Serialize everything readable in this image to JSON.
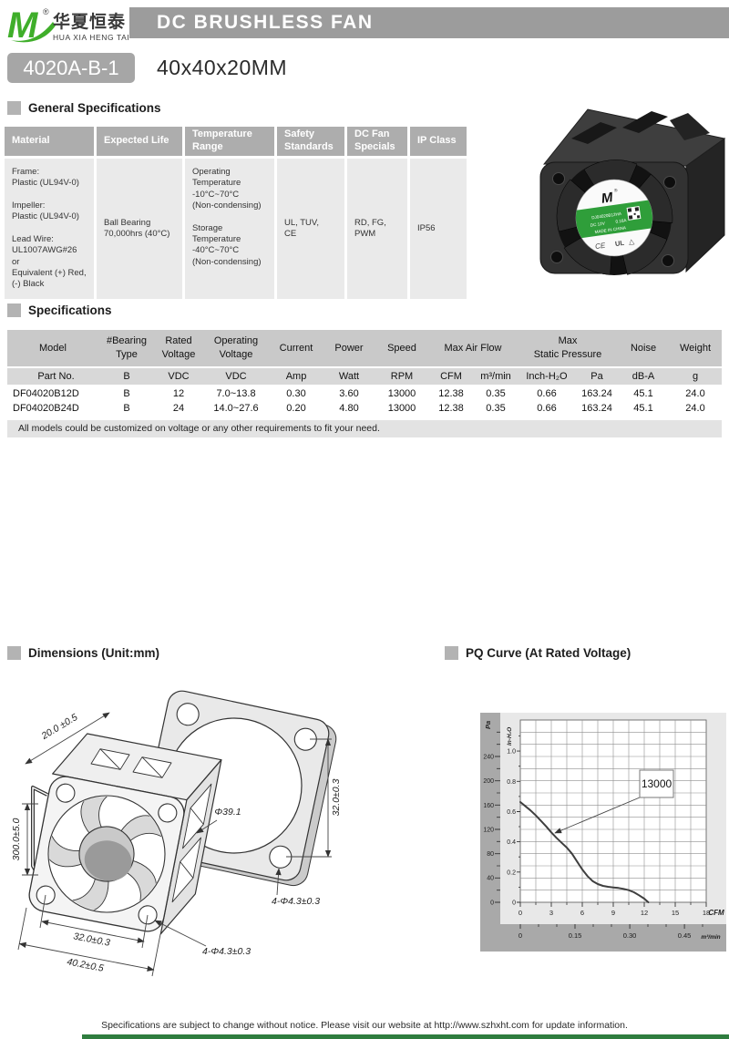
{
  "page": {
    "banner_title": "DC BRUSHLESS FAN",
    "model_badge": "4020A-B-1",
    "size_label": "40x40x20MM",
    "footer_note": "Specifications are subject to change without notice. Please visit our website at http://www.szhxht.com for update information."
  },
  "logo": {
    "mark": "M",
    "registered": "®",
    "brand_cn": "华夏恒泰",
    "brand_en": "HUA XIA HENG TAI",
    "green": "#3fae2a"
  },
  "sections": {
    "general": "General Specifications",
    "specifications": "Specifications",
    "dimensions": "Dimensions (Unit:mm)",
    "pq_curve": "PQ Curve (At Rated Voltage)"
  },
  "general_table": {
    "headers": [
      "Material",
      "Expected Life",
      "Temperature\nRange",
      "Safety\nStandards",
      "DC Fan\nSpecials",
      "IP Class"
    ],
    "material": "Frame:\nPlastic (UL94V-0)\n\nImpeller:\nPlastic (UL94V-0)\n\nLead Wire:\nUL1007AWG#26 or\nEquivalent (+) Red,\n(-) Black",
    "expected_life": "Ball Bearing\n70,000hrs (40°C)",
    "temperature_range": "Operating\nTemperature\n -10°C~70°C\n(Non-condensing)\n\nStorage\nTemperature\n -40°C~70°C\n(Non-condensing)",
    "safety_standards": "UL, TUV,\nCE",
    "dc_fan_specials": "RD, FG,\nPWM",
    "ip_class": "IP56"
  },
  "spec_table": {
    "h1": {
      "model": "Model",
      "bearing": "#Bearing\nType",
      "rated": "Rated\nVoltage",
      "operating": "Operating\nVoltage",
      "current": "Current",
      "power": "Power",
      "speed": "Speed",
      "airflow": "Max  Air  Flow",
      "pressure": "Max\nStatic  Pressure",
      "noise": "Noise",
      "weight": "Weight"
    },
    "h2": [
      "Part No.",
      "B",
      "VDC",
      "VDC",
      "Amp",
      "Watt",
      "RPM",
      "CFM",
      "m³/min",
      "Inch-H₂O",
      "Pa",
      "dB-A",
      "g"
    ],
    "rows": [
      [
        "DF04020B12D",
        "B",
        "12",
        "7.0~13.8",
        "0.30",
        "3.60",
        "13000",
        "12.38",
        "0.35",
        "0.66",
        "163.24",
        "45.1",
        "24.0"
      ],
      [
        "DF04020B24D",
        "B",
        "24",
        "14.0~27.6",
        "0.20",
        "4.80",
        "13000",
        "12.38",
        "0.35",
        "0.66",
        "163.24",
        "45.1",
        "24.0"
      ]
    ],
    "note": "All models could be customized on voltage or any other requirements to fit your need."
  },
  "fan_photo_label": {
    "brand": "M",
    "model": "DJ04020B12HA",
    "volt": "DC 12V",
    "amp": "0.16A",
    "origin": "MADE IN CHINA",
    "ce_mark": "CE",
    "ul_mark": "UL"
  },
  "dimensions": {
    "depth": "20.0 ±0.5",
    "lead_length": "300.0±5.0",
    "bore_diameter": "Φ39.1",
    "hole_pitch_vertical": "32.0±0.3",
    "plate_holes": "4-Φ4.3±0.3",
    "hole_pitch_horizontal": "32.0±0.3",
    "frame_width": "40.2±0.5",
    "frame_holes": "4-Φ4.3±0.3"
  },
  "chart_data": {
    "type": "line",
    "title": "PQ Curve (At Rated Voltage)",
    "x_axis": {
      "label": "CFM",
      "range": [
        0,
        18
      ],
      "ticks": [
        0,
        3,
        6,
        9,
        12,
        15,
        18
      ]
    },
    "x_axis_secondary": {
      "label": "m³/min",
      "ticks": [
        "0",
        "0.15",
        "0.30",
        "0.45"
      ]
    },
    "y_axis": {
      "label": "Pa",
      "range": [
        0,
        300
      ],
      "ticks": [
        0,
        40,
        80,
        120,
        160,
        200,
        240
      ]
    },
    "y_axis_secondary": {
      "label": "In-H₂O",
      "ticks": [
        "0",
        "0.2",
        "0.4",
        "0.6",
        "0.8",
        "1.0"
      ]
    },
    "grid": true,
    "legend": "none",
    "annotation": {
      "text": "13000",
      "meaning": "fan speed RPM",
      "points_to_cfm_pa": [
        3,
        115
      ]
    },
    "series": [
      {
        "name": "13000 RPM",
        "x_unit": "CFM",
        "y_unit": "Pa",
        "points": [
          [
            0,
            165
          ],
          [
            0.5,
            158
          ],
          [
            1,
            151
          ],
          [
            1.5,
            143
          ],
          [
            2,
            134
          ],
          [
            2.5,
            125
          ],
          [
            3,
            115
          ],
          [
            3.5,
            106
          ],
          [
            4,
            98
          ],
          [
            4.5,
            90
          ],
          [
            5,
            80
          ],
          [
            5.5,
            67
          ],
          [
            6,
            54
          ],
          [
            6.5,
            43
          ],
          [
            7,
            35
          ],
          [
            7.5,
            30
          ],
          [
            8,
            27
          ],
          [
            8.5,
            25.5
          ],
          [
            9,
            24.5
          ],
          [
            9.5,
            23.5
          ],
          [
            10,
            22
          ],
          [
            10.5,
            20
          ],
          [
            11,
            16.5
          ],
          [
            11.5,
            11.5
          ],
          [
            12,
            6
          ],
          [
            12.4,
            0
          ]
        ],
        "max_airflow_cfm": 12.38,
        "max_static_pressure_pa": 163.24
      }
    ]
  }
}
